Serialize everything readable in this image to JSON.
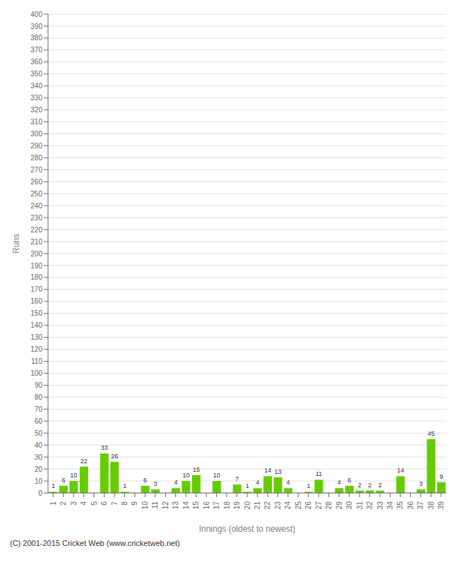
{
  "chart_data": {
    "type": "bar",
    "categories": [
      "1",
      "2",
      "3",
      "4",
      "5",
      "6",
      "7",
      "8",
      "9",
      "10",
      "11",
      "12",
      "13",
      "14",
      "15",
      "16",
      "17",
      "18",
      "19",
      "20",
      "21",
      "22",
      "23",
      "24",
      "25",
      "26",
      "27",
      "28",
      "29",
      "30",
      "31",
      "32",
      "33",
      "34",
      "35",
      "36",
      "37",
      "38",
      "39"
    ],
    "values": [
      1,
      6,
      10,
      22,
      0,
      33,
      26,
      1,
      0,
      6,
      3,
      0,
      4,
      10,
      15,
      0,
      10,
      0,
      7,
      1,
      4,
      14,
      13,
      4,
      0,
      1,
      11,
      0,
      4,
      6,
      2,
      2,
      2,
      0,
      14,
      0,
      3,
      45,
      9
    ],
    "color": "#66cc00",
    "xlabel": "Innings (oldest to newest)",
    "ylabel": "Runs",
    "annotations": [
      "(C) 2001-2015 Cricket Web (www.cricketweb.net)"
    ],
    "ylim": [
      0,
      400
    ],
    "yticks": [
      0,
      10,
      20,
      30,
      40,
      50,
      60,
      70,
      80,
      90,
      100,
      110,
      120,
      130,
      140,
      150,
      160,
      170,
      180,
      190,
      200,
      210,
      220,
      230,
      240,
      250,
      260,
      270,
      280,
      290,
      300,
      310,
      320,
      330,
      340,
      350,
      360,
      370,
      380,
      390,
      400
    ],
    "grid": true,
    "data_labels": true
  }
}
